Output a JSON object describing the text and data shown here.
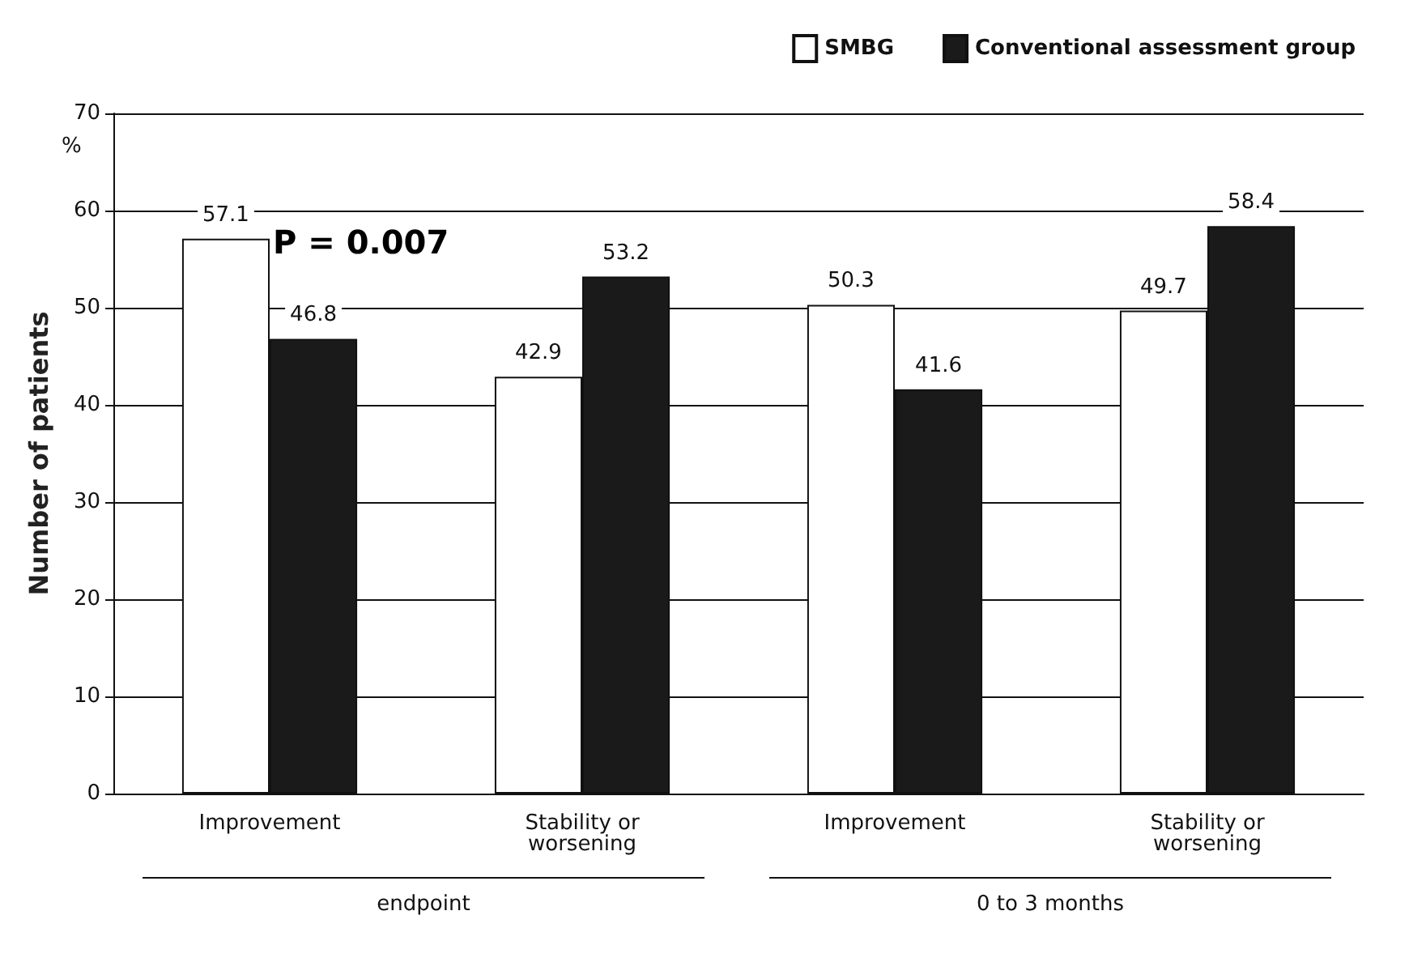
{
  "chart_data": {
    "type": "bar",
    "ylabel": "Number of patients",
    "categories": [
      "Improvement",
      "Stability or\nworsening",
      "Improvement",
      "Stability or\nworsening"
    ],
    "series": [
      {
        "name": "SMBG",
        "color": "#ffffff",
        "values": [
          57.1,
          42.9,
          50.3,
          49.7
        ]
      },
      {
        "name": "Conventional assessment group",
        "color": "#1a1a1a",
        "values": [
          46.8,
          53.2,
          41.6,
          58.4
        ]
      }
    ],
    "ylim": [
      0,
      70
    ],
    "yticks": [
      0,
      10,
      20,
      30,
      40,
      50,
      60,
      70
    ],
    "grid": "y",
    "legend": "top right",
    "data_labels": true,
    "annotations": [
      "%",
      "endpoint",
      "0 to 3 months",
      {
        "text": "P = 0.007",
        "x": "Improvement",
        "y": 57.1
      }
    ]
  }
}
